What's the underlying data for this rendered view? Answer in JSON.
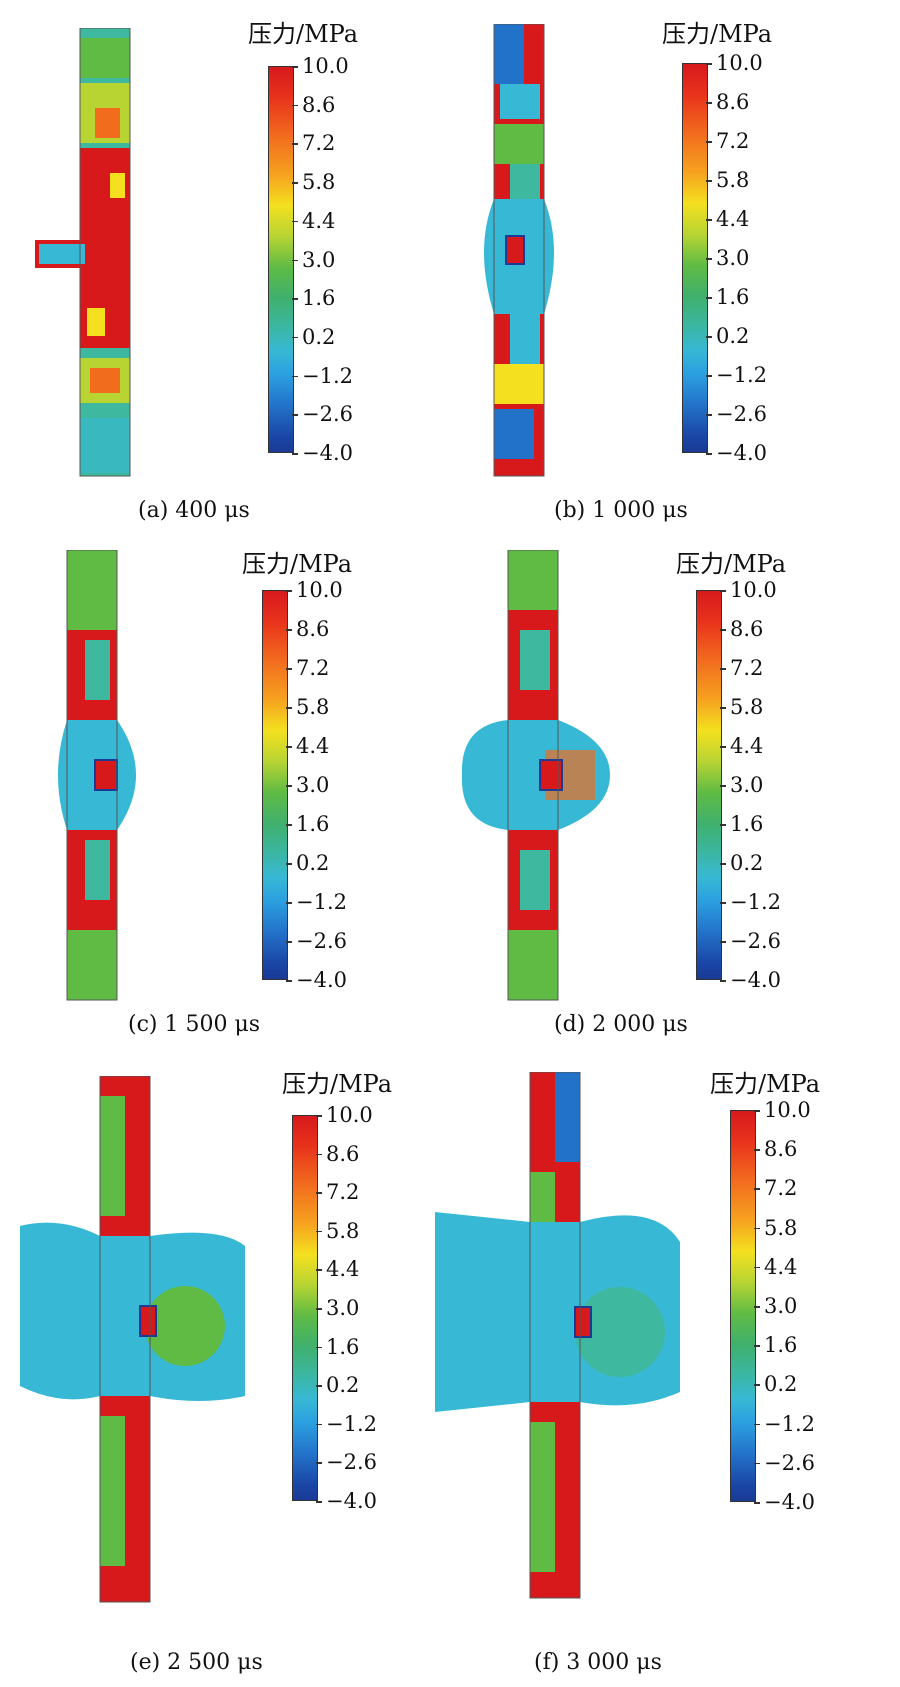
{
  "scale": {
    "title": "压力/MPa",
    "ticks": [
      "10.0",
      "8.6",
      "7.2",
      "5.8",
      "4.4",
      "3.0",
      "1.6",
      "0.2",
      "−1.2",
      "−2.6",
      "−4.0"
    ]
  },
  "panels": [
    {
      "id": "a",
      "caption": "(a) 400 μs"
    },
    {
      "id": "b",
      "caption": "(b) 1 000 μs"
    },
    {
      "id": "c",
      "caption": "(c) 1 500 μs"
    },
    {
      "id": "d",
      "caption": "(d) 2 000 μs"
    },
    {
      "id": "e",
      "caption": "(e) 2 500 μs"
    },
    {
      "id": "f",
      "caption": "(f) 3 000 μs"
    }
  ],
  "colors": {
    "red": "#d7191c",
    "orange": "#f26c1e",
    "yellow": "#f4e01f",
    "green": "#5fbb44",
    "teal": "#3fb8a0",
    "cyan": "#37b8d5",
    "blue": "#1a46a6"
  }
}
